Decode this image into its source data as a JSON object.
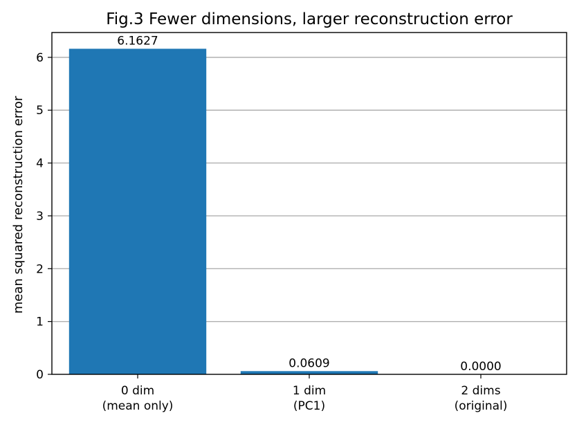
{
  "chart_data": {
    "type": "bar",
    "title": "Fig.3 Fewer dimensions, larger reconstruction error",
    "xlabel": "",
    "ylabel": "mean squared reconstruction error",
    "categories": [
      [
        "0 dim",
        "(mean only)"
      ],
      [
        "1 dim",
        "(PC1)"
      ],
      [
        "2 dims",
        "(original)"
      ]
    ],
    "values": [
      6.1627,
      0.0609,
      0.0
    ],
    "value_labels": [
      "6.1627",
      "0.0609",
      "0.0000"
    ],
    "ylim": [
      0,
      6.47
    ],
    "yticks": [
      0,
      1,
      2,
      3,
      4,
      5,
      6
    ],
    "grid": "y",
    "bar_color": "#1f77b4",
    "grid_color": "#b0b0b0"
  }
}
